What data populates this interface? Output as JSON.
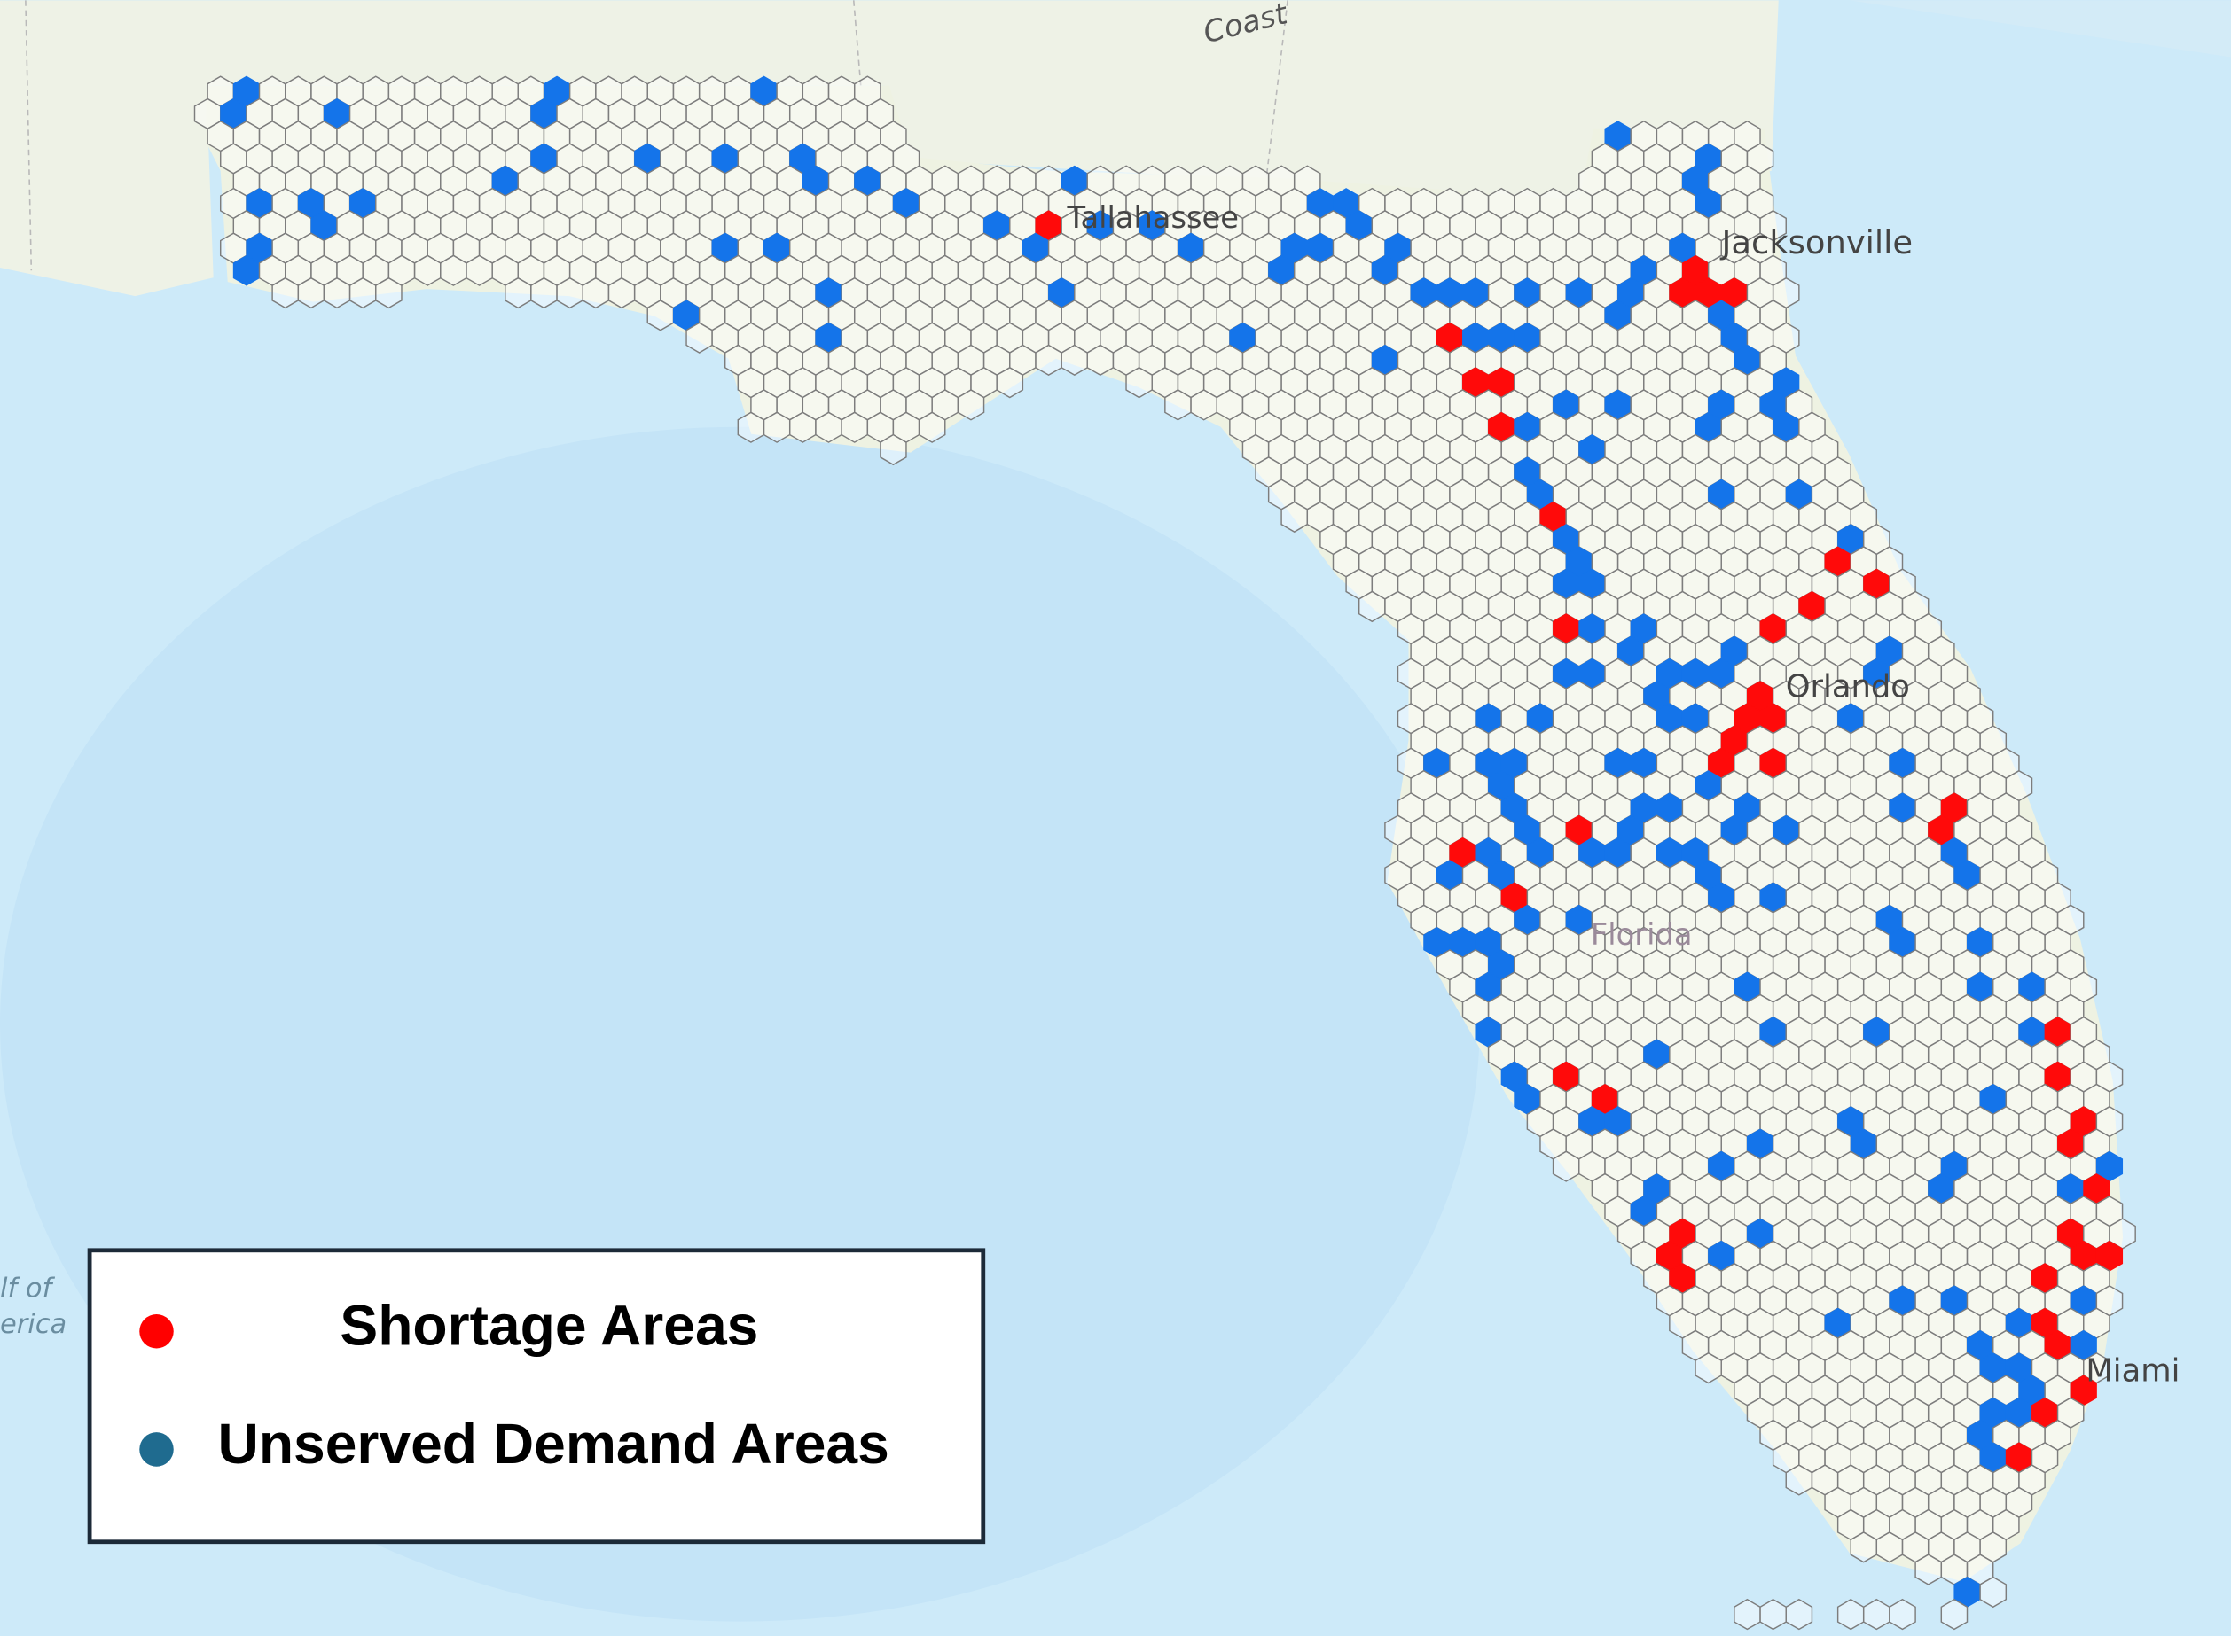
{
  "map": {
    "labels": {
      "coast": "Coast",
      "tallahassee": "Tallahassee",
      "jacksonville": "Jacksonville",
      "orlando": "Orlando",
      "florida": "Florida",
      "miami": "Miami",
      "gulf_1": "lf of",
      "gulf_2": "erica"
    }
  },
  "legend": {
    "items": [
      {
        "label": "Shortage Areas",
        "color": "#ff0000"
      },
      {
        "label": "Unserved Demand Areas",
        "color": "#1f6b8f"
      }
    ]
  }
}
